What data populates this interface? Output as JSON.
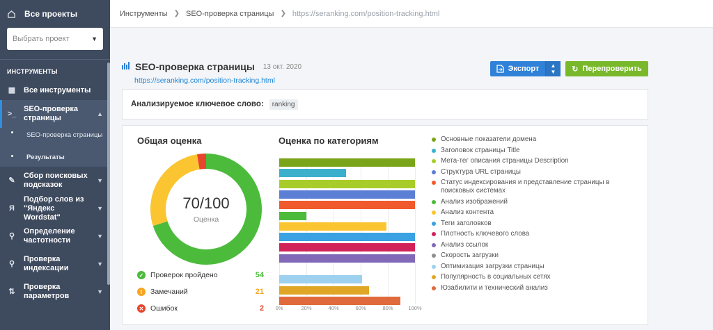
{
  "sidebar": {
    "all_projects": "Все проекты",
    "project_select_placeholder": "Выбрать проект",
    "section_title": "ИНСТРУМЕНТЫ",
    "items": [
      {
        "label": "Все инструменты",
        "icon": "grid-icon"
      },
      {
        "label": "SEO-проверка страницы",
        "icon": "terminal-icon"
      },
      {
        "label": "Сбор поисковых подсказок",
        "icon": "pencil-icon"
      },
      {
        "label": "Подбор слов из \"Яндекс Wordstat\"",
        "icon": "yandex-icon"
      },
      {
        "label": "Определение частотности",
        "icon": "key-icon"
      },
      {
        "label": "Проверка индексации",
        "icon": "search-icon"
      },
      {
        "label": "Проверка параметров",
        "icon": "sliders-icon"
      }
    ],
    "subitems": [
      "SEO-проверка страницы",
      "Результаты"
    ]
  },
  "breadcrumb": {
    "tools": "Инструменты",
    "page": "SEO-проверка страницы",
    "url": "https://seranking.com/position-tracking.html"
  },
  "header": {
    "title": "SEO-проверка страницы",
    "date": "13 окт. 2020",
    "url": "https://seranking.com/position-tracking.html",
    "export_label": "Экспорт",
    "recheck_label": "Перепроверить"
  },
  "keyword": {
    "label": "Анализируемое ключевое слово:",
    "value": "ranking"
  },
  "overall": {
    "title": "Общая оценка",
    "score": "70/100",
    "score_label": "Оценка",
    "stats": [
      {
        "label": "Проверок пройдено",
        "value": "54",
        "color": "#4cbb3c"
      },
      {
        "label": "Замечаний",
        "value": "21",
        "color": "#f5a623"
      },
      {
        "label": "Ошибок",
        "value": "2",
        "color": "#e8452c"
      }
    ]
  },
  "categories_title": "Оценка по категориям",
  "chart_data": [
    {
      "type": "pie",
      "values": [
        54,
        21,
        2
      ],
      "colors": [
        "#4cbb3c",
        "#fbc531",
        "#e8452c"
      ]
    },
    {
      "type": "bar",
      "orientation": "horizontal",
      "xlim": [
        0,
        100
      ],
      "x_ticks": [
        "0%",
        "20%",
        "40%",
        "60%",
        "80%",
        "100%"
      ],
      "categories": [
        "Основные показатели домена",
        "Заголовок страницы Title",
        "Мета-тег описания страницы Description",
        "Структура URL страницы",
        "Статус индексирования и представление страницы в поисковых системах",
        "Анализ изображений",
        "Анализ контента",
        "Теги заголовков",
        "Плотность ключевого слова",
        "Анализ ссылок",
        "Скорость загрузки",
        "Оптимизация загрузки страницы",
        "Популярность в социальных сетях",
        "Юзабилити и технический анализ"
      ],
      "values": [
        100,
        49,
        100,
        100,
        100,
        20,
        79,
        100,
        100,
        100,
        0,
        61,
        66,
        89
      ],
      "colors": [
        "#7aa419",
        "#3bb0cc",
        "#a8cd2a",
        "#5b7fd4",
        "#f05a2c",
        "#4cbb3c",
        "#fbc531",
        "#3aa1e2",
        "#d2225a",
        "#8169b8",
        "#8e8e8e",
        "#9dd1ef",
        "#e0a626",
        "#e06a3c"
      ]
    }
  ]
}
